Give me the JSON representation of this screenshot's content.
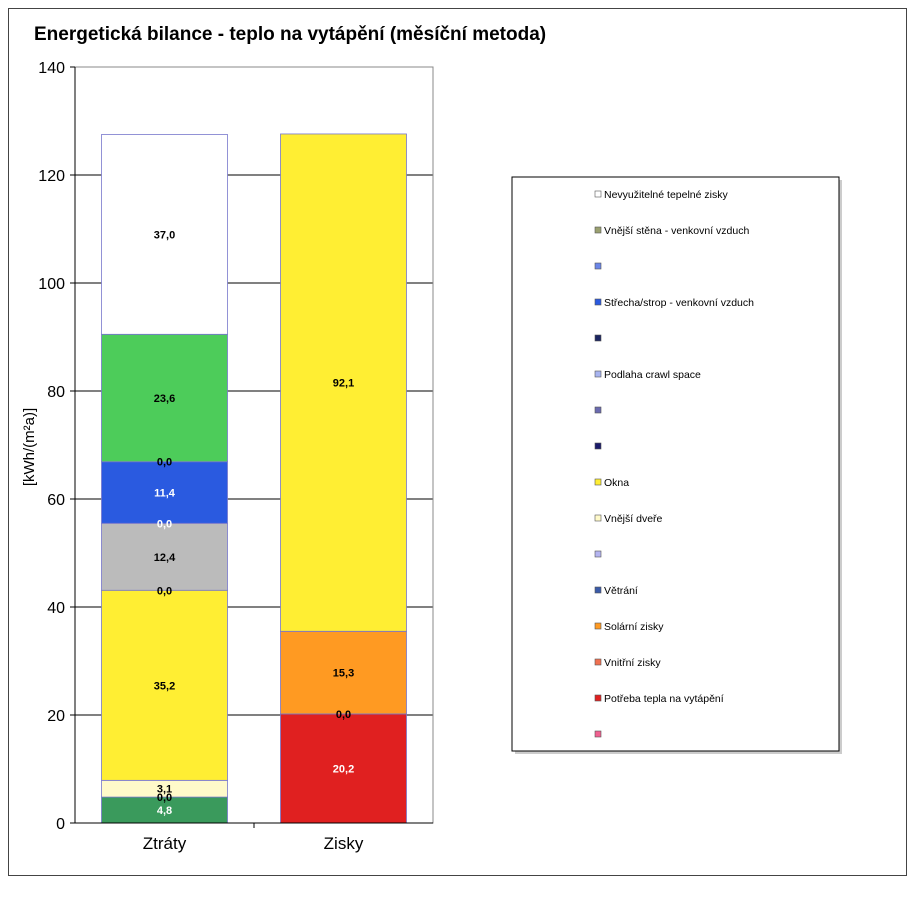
{
  "chart_data": {
    "type": "bar",
    "stacked": true,
    "title": "Energetická bilance - teplo na vytápění (měsíční metoda)",
    "ylabel": "[kWh/(m²a)]",
    "xlabel": "",
    "ylim": [
      0,
      140
    ],
    "yticks": [
      0,
      20,
      40,
      60,
      80,
      100,
      120,
      140
    ],
    "grid": true,
    "legend_position": "right",
    "categories": [
      "Ztráty",
      "Zisky"
    ],
    "series": [
      {
        "name": "Potřeba tepla na vytápění",
        "color": "#e02020",
        "values": [
          null,
          20.2
        ],
        "labels": [
          "",
          "20,2"
        ],
        "label_color": "#ffffff"
      },
      {
        "name": "Vnitřní zisky",
        "color": "#f07050",
        "values": [
          null,
          0.0
        ],
        "labels": [
          "",
          "0,0"
        ],
        "label_color": "#000000"
      },
      {
        "name": "Solární zisky",
        "color": "#ff9a22",
        "values": [
          null,
          15.3
        ],
        "labels": [
          "",
          "15,3"
        ],
        "label_color": "#000000"
      },
      {
        "name": "Okna",
        "color": "#ffee33",
        "values": [
          null,
          92.1
        ],
        "labels": [
          "",
          "92,1"
        ],
        "label_color": "#000000"
      },
      {
        "name": "",
        "color": "#3a9a5c",
        "values": [
          4.8,
          null
        ],
        "labels": [
          "4,8",
          ""
        ],
        "label_color": "#ffffff"
      },
      {
        "name": "",
        "color": "#bbbbbb",
        "values": [
          0.0,
          null
        ],
        "labels": [
          "0,0",
          ""
        ],
        "label_color": "#000000"
      },
      {
        "name": "Vnější dveře",
        "color": "#fffaca",
        "values": [
          3.1,
          null
        ],
        "labels": [
          "3,1",
          ""
        ],
        "label_color": "#000000"
      },
      {
        "name": "Okna",
        "color": "#ffee33",
        "values": [
          35.2,
          null
        ],
        "labels": [
          "35,2",
          ""
        ],
        "label_color": "#000000"
      },
      {
        "name": "",
        "color": "#bbbbbb",
        "values": [
          0.0,
          null
        ],
        "labels": [
          "0,0",
          ""
        ],
        "label_color": "#000000"
      },
      {
        "name": "",
        "color": "#bbbbbb",
        "values": [
          12.4,
          null
        ],
        "labels": [
          "12,4",
          ""
        ],
        "label_color": "#000000"
      },
      {
        "name": "",
        "color": "#bbbbbb",
        "values": [
          0.0,
          null
        ],
        "labels": [
          "0,0",
          ""
        ],
        "label_color": "#ffffff"
      },
      {
        "name": "Střecha/strop - venkovní vzduch",
        "color": "#2a5ae0",
        "values": [
          11.4,
          null
        ],
        "labels": [
          "11,4",
          ""
        ],
        "label_color": "#ffffff"
      },
      {
        "name": "",
        "color": "#2a5ae0",
        "values": [
          0.0,
          null
        ],
        "labels": [
          "0,0",
          ""
        ],
        "label_color": "#000000"
      },
      {
        "name": "",
        "color": "#4dcc5a",
        "values": [
          23.6,
          null
        ],
        "labels": [
          "23,6",
          ""
        ],
        "label_color": "#000000"
      },
      {
        "name": "Nevyužitelné tepelné zisky",
        "color": "#ffffff",
        "values": [
          37.0,
          null
        ],
        "labels": [
          "37,0",
          ""
        ],
        "label_color": "#000000"
      }
    ],
    "legend": [
      {
        "label": "Nevyužitelné tepelné zisky",
        "color": "#ffffff"
      },
      {
        "label": "Vnější stěna - venkovní vzduch",
        "color": "#9aa070"
      },
      {
        "label": "",
        "color": "#6b86e8"
      },
      {
        "label": "Střecha/strop - venkovní vzduch",
        "color": "#2a5ae0"
      },
      {
        "label": "",
        "color": "#1a2460"
      },
      {
        "label": "Podlaha crawl space",
        "color": "#a8b4f0"
      },
      {
        "label": "",
        "color": "#6a6ab0"
      },
      {
        "label": "",
        "color": "#1a1a6a"
      },
      {
        "label": "Okna",
        "color": "#ffee33"
      },
      {
        "label": "Vnější dveře",
        "color": "#fffaca"
      },
      {
        "label": "",
        "color": "#b4b4f0"
      },
      {
        "label": "Větrání",
        "color": "#3a5aa8"
      },
      {
        "label": "Solární zisky",
        "color": "#ff9a22"
      },
      {
        "label": "Vnitřní zisky",
        "color": "#f07050"
      },
      {
        "label": "Potřeba tepla na vytápění",
        "color": "#e02020"
      },
      {
        "label": "",
        "color": "#f06090"
      }
    ]
  }
}
